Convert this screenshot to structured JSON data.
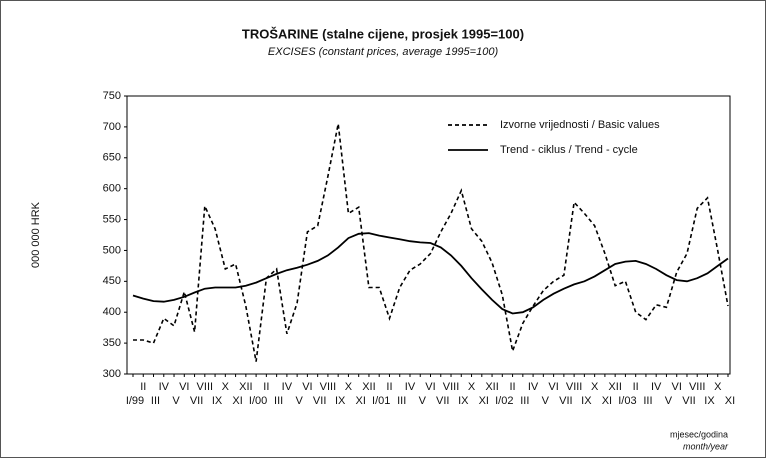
{
  "chart_data": {
    "type": "line",
    "title": "TROŠARINE (stalne cijene, prosjek 1995=100)",
    "subtitle": "EXCISES (constant prices, average 1995=100)",
    "y_label": "000 000 HRK",
    "x_label": "mjesec/godina",
    "x_label_en": "month/year",
    "categories": [
      "I/99",
      "II",
      "III",
      "IV",
      "V",
      "VI",
      "VII",
      "VIII",
      "IX",
      "X",
      "XI",
      "XII",
      "I/00",
      "II",
      "III",
      "IV",
      "V",
      "VI",
      "VII",
      "VIII",
      "IX",
      "X",
      "XI",
      "XII",
      "I/01",
      "II",
      "III",
      "IV",
      "V",
      "VI",
      "VII",
      "VIII",
      "IX",
      "X",
      "XI",
      "XII",
      "I/02",
      "II",
      "III",
      "IV",
      "V",
      "VI",
      "VII",
      "VIII",
      "IX",
      "X",
      "XI",
      "XII",
      "I/03",
      "II",
      "III",
      "IV",
      "V",
      "VI",
      "VII",
      "VIII",
      "IX",
      "X",
      "XI"
    ],
    "series": [
      {
        "name": "Izvorne vrijednosti / Basic values",
        "color": "#000000",
        "dashed": true,
        "values": [
          355,
          355,
          350,
          390,
          378,
          433,
          368,
          572,
          535,
          470,
          478,
          410,
          320,
          455,
          470,
          365,
          415,
          530,
          540,
          620,
          705,
          560,
          570,
          440,
          440,
          390,
          440,
          468,
          478,
          495,
          530,
          560,
          597,
          535,
          515,
          480,
          428,
          337,
          382,
          410,
          435,
          450,
          460,
          578,
          560,
          540,
          495,
          443,
          450,
          400,
          388,
          412,
          408,
          465,
          495,
          568,
          585,
          500,
          410
        ]
      },
      {
        "name": "Trend - ciklus / Trend - cycle",
        "color": "#000000",
        "dashed": false,
        "values": [
          427,
          422,
          418,
          417,
          420,
          425,
          432,
          438,
          440,
          440,
          440,
          443,
          448,
          455,
          462,
          468,
          472,
          477,
          483,
          492,
          505,
          520,
          527,
          528,
          524,
          521,
          518,
          515,
          513,
          512,
          505,
          492,
          475,
          455,
          437,
          420,
          405,
          398,
          400,
          408,
          420,
          430,
          438,
          445,
          450,
          458,
          468,
          478,
          482,
          483,
          478,
          470,
          460,
          452,
          450,
          455,
          463,
          475,
          487
        ]
      }
    ],
    "ylim": [
      300,
      750
    ],
    "yticks": [
      300,
      350,
      400,
      450,
      500,
      550,
      600,
      650,
      700,
      750
    ],
    "grid": false,
    "legend": "upper right"
  }
}
